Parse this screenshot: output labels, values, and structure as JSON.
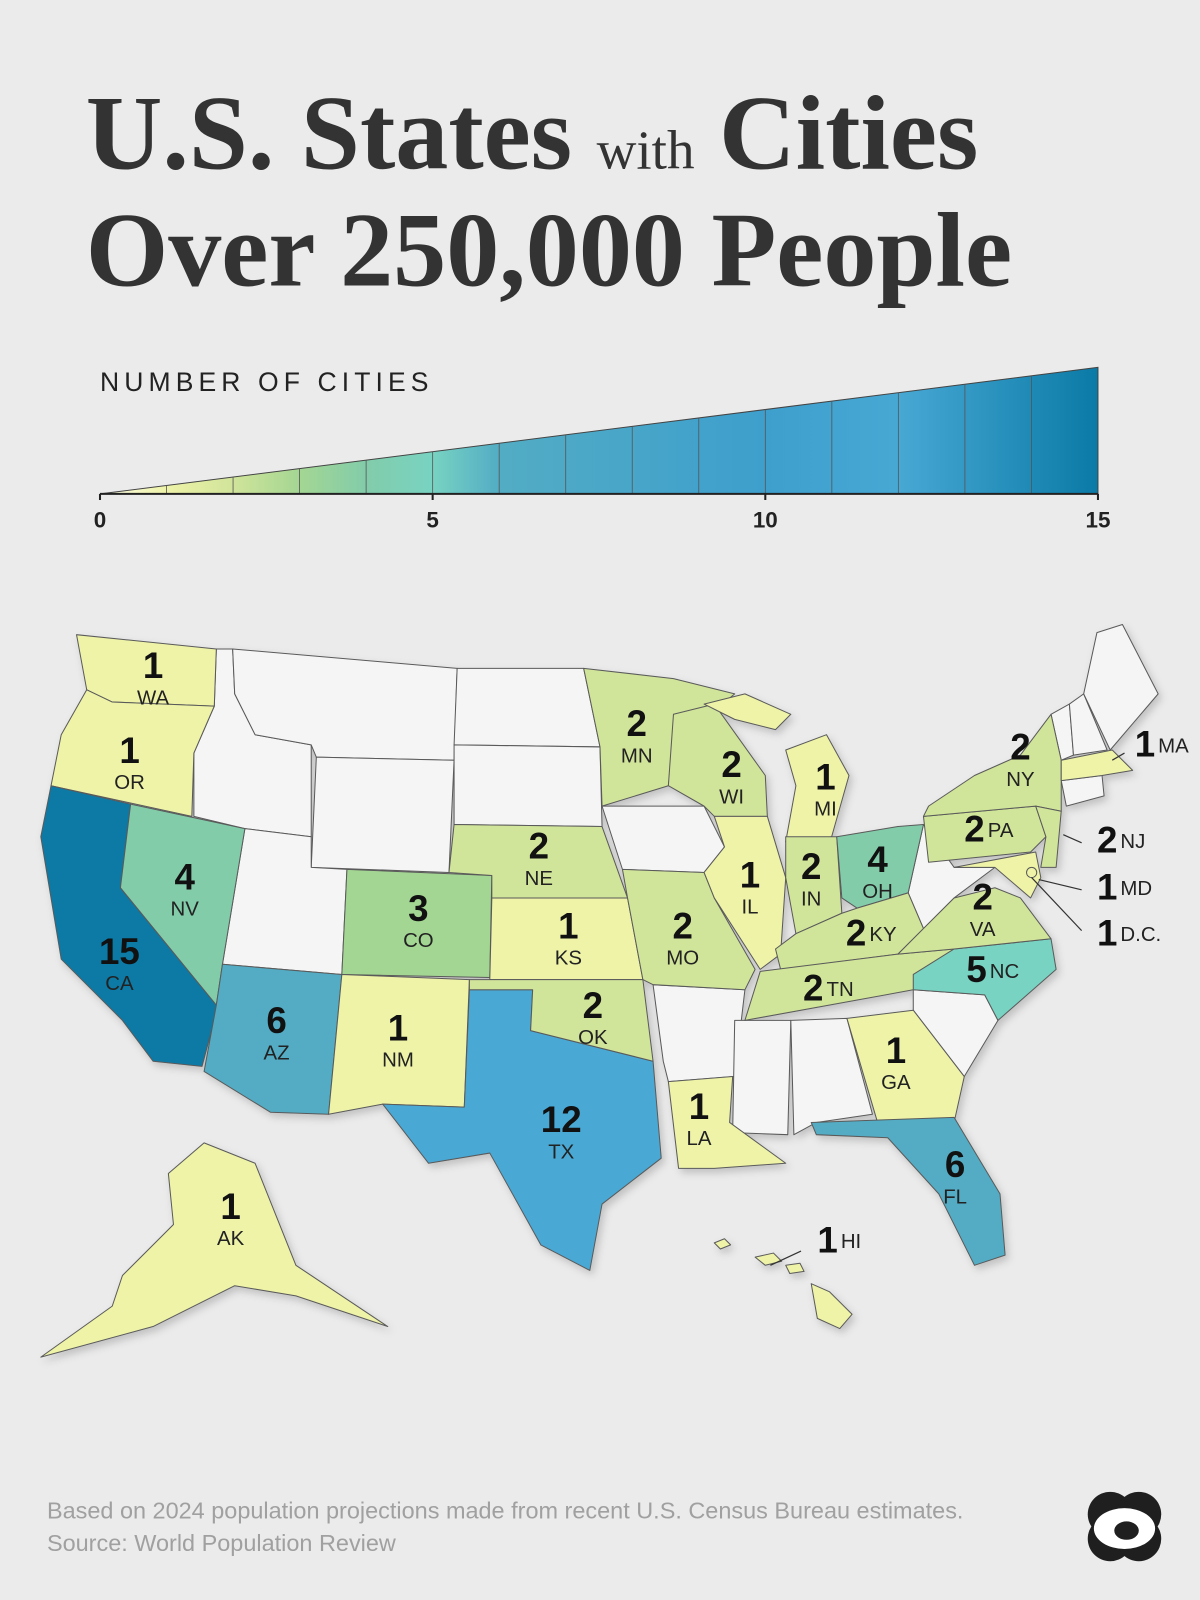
{
  "title": {
    "line1": [
      "U.S. States",
      "with",
      "Cities"
    ],
    "line2": "Over 250,000 People"
  },
  "legend": {
    "title": "NUMBER OF CITIES",
    "range": [
      0,
      15
    ],
    "ticks": [
      0,
      5,
      10,
      15
    ],
    "color_stops": [
      {
        "value": 0,
        "color": "#fdfde8"
      },
      {
        "value": 1,
        "color": "#eef3a8"
      },
      {
        "value": 2,
        "color": "#d0e49a"
      },
      {
        "value": 3,
        "color": "#a4d693"
      },
      {
        "value": 4,
        "color": "#82ccaa"
      },
      {
        "value": 5,
        "color": "#78d3c2"
      },
      {
        "value": 6,
        "color": "#52acc4"
      },
      {
        "value": 10,
        "color": "#3e9fcd"
      },
      {
        "value": 12,
        "color": "#48a8d4"
      },
      {
        "value": 15,
        "color": "#0b7aa6"
      }
    ]
  },
  "states": [
    {
      "abbr": "WA",
      "value": 1
    },
    {
      "abbr": "OR",
      "value": 1
    },
    {
      "abbr": "CA",
      "value": 15
    },
    {
      "abbr": "NV",
      "value": 4
    },
    {
      "abbr": "AZ",
      "value": 6
    },
    {
      "abbr": "CO",
      "value": 3
    },
    {
      "abbr": "NM",
      "value": 1
    },
    {
      "abbr": "TX",
      "value": 12
    },
    {
      "abbr": "AK",
      "value": 1
    },
    {
      "abbr": "HI",
      "value": 1
    },
    {
      "abbr": "MN",
      "value": 2
    },
    {
      "abbr": "WI",
      "value": 2
    },
    {
      "abbr": "MI",
      "value": 1
    },
    {
      "abbr": "NE",
      "value": 2
    },
    {
      "abbr": "KS",
      "value": 1
    },
    {
      "abbr": "OK",
      "value": 2
    },
    {
      "abbr": "MO",
      "value": 2
    },
    {
      "abbr": "IL",
      "value": 1
    },
    {
      "abbr": "IN",
      "value": 2
    },
    {
      "abbr": "OH",
      "value": 4
    },
    {
      "abbr": "KY",
      "value": 2
    },
    {
      "abbr": "TN",
      "value": 2
    },
    {
      "abbr": "LA",
      "value": 1
    },
    {
      "abbr": "GA",
      "value": 1
    },
    {
      "abbr": "FL",
      "value": 6
    },
    {
      "abbr": "NC",
      "value": 5
    },
    {
      "abbr": "VA",
      "value": 2
    },
    {
      "abbr": "PA",
      "value": 2
    },
    {
      "abbr": "NY",
      "value": 2
    },
    {
      "abbr": "NJ",
      "value": 2
    },
    {
      "abbr": "MD",
      "value": 1
    },
    {
      "abbr": "D.C.",
      "value": 1
    },
    {
      "abbr": "MA",
      "value": 1
    }
  ],
  "footer": {
    "note": "Based on 2024 population projections made from recent U.S. Census Bureau estimates.",
    "source": "Source: World Population Review"
  }
}
